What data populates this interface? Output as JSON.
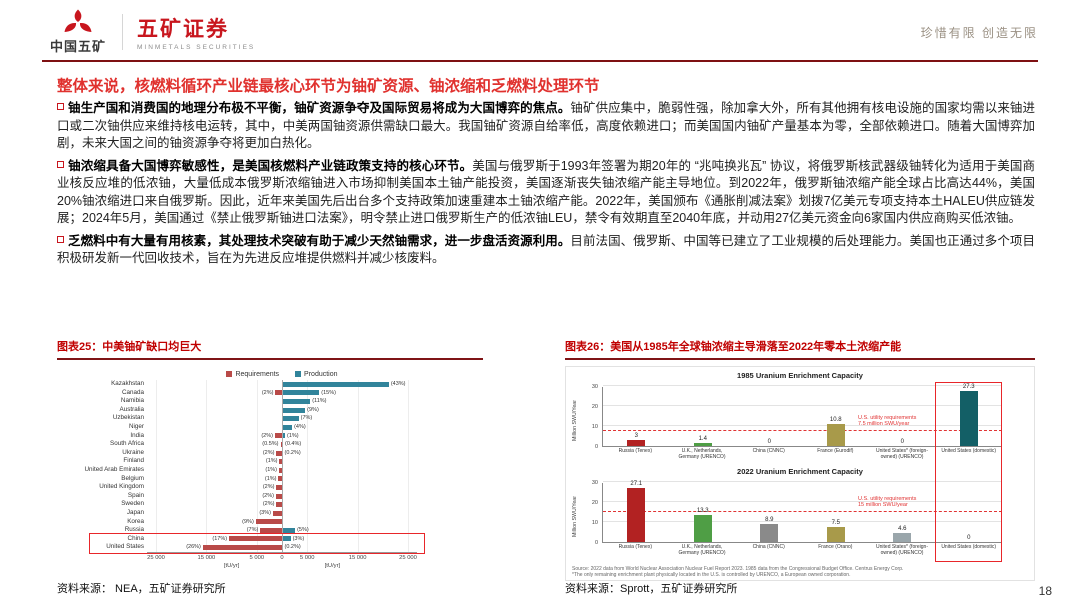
{
  "header": {
    "logo_cn": "中国五矿",
    "brand": "五矿证券",
    "brand_en": "MINMETALS SECURITIES",
    "slogan": "珍惜有限 创造无限"
  },
  "page": {
    "title": "整体来说，核燃料循环产业链最核心环节为铀矿资源、铀浓缩和乏燃料处理环节",
    "number": "18"
  },
  "bullets": [
    {
      "lead": "铀生产国和消费国的地理分布极不平衡，铀矿资源争夺及国际贸易将成为大国博弈的焦点。",
      "body": "铀矿供应集中，脆弱性强，除加拿大外，所有其他拥有核电设施的国家均需以来铀进口或二次铀供应来维持核电运转，其中，中美两国铀资源供需缺口最大。我国铀矿资源自给率低，高度依赖进口；而美国国内铀矿产量基本为零，全部依赖进口。随着大国博弈加剧，未来大国之间的铀资源争夺将更加白热化。"
    },
    {
      "lead": "铀浓缩具备大国博弈敏感性，是美国核燃料产业链政策支持的核心环节。",
      "body": "美国与俄罗斯于1993年签署为期20年的 “兆吨换兆瓦” 协议，将俄罗斯核武器级铀转化为适用于美国商业核反应堆的低浓铀，大量低成本俄罗斯浓缩铀进入市场抑制美国本土铀产能投资，美国逐渐丧失铀浓缩产能主导地位。到2022年，俄罗斯铀浓缩产能全球占比高达44%，美国20%铀浓缩进口来自俄罗斯。因此，近年来美国先后出台多个支持政策加速重建本土铀浓缩产能。2022年，美国颁布《通胀削减法案》划拨7亿美元专项支持本土HALEU供应链发展；2024年5月，美国通过《禁止俄罗斯铀进口法案》，明令禁止进口俄罗斯生产的低浓铀LEU，禁令有效期直至2040年底，并动用27亿美元资金向6家国内供应商购买低浓铀。"
    },
    {
      "lead": "乏燃料中有大量有用核素，其处理技术突破有助于减少天然铀需求，进一步盘活资源利用。",
      "body": "目前法国、俄罗斯、中国等已建立了工业规模的后处理能力。美国也正通过多个项目积极研发新一代回收技术，旨在为先进反应堆提供燃料并减少核废料。"
    }
  ],
  "figure25": {
    "title": "图表25：中美铀矿缺口均巨大",
    "source": "资料来源： NEA，五矿证券研究所"
  },
  "figure26": {
    "title": "图表26：美国从1985年全球铀浓缩主导滑落至2022年零本土浓缩产能",
    "source": "资料来源：Sprott，五矿证券研究所",
    "footnote_line1": "Source: 2022 data from World Nuclear Association Nuclear Fuel Report 2023. 1985 data from the Congressional Budget Office. Centrus Energy Corp.",
    "footnote_line2": "*The only remaining enrichment plant physically located in the U.S. is controlled by URENCO, a European owned corporation."
  },
  "chart_data": [
    {
      "type": "bar",
      "orientation": "horizontal-diverging",
      "title": "中美铀矿缺口均巨大",
      "legend": [
        "Requirements",
        "Production"
      ],
      "colors": {
        "requirements": "#b94a48",
        "production": "#31849b"
      },
      "unit_label": "[tU/yr]",
      "axis_ticks": [
        "25 000",
        "15 000",
        "5 000",
        "0",
        "5 000",
        "15 000",
        "25 000"
      ],
      "xlim": [
        -25000,
        25000
      ],
      "highlight_rows": [
        "China",
        "United States"
      ],
      "rows": [
        {
          "country": "Kazakhstan",
          "requirements": 0,
          "production": 21200,
          "req_label": "",
          "prod_label": "(43%)"
        },
        {
          "country": "Canada",
          "requirements": 1300,
          "production": 7400,
          "req_label": "(2%)",
          "prod_label": "(15%)"
        },
        {
          "country": "Namibia",
          "requirements": 0,
          "production": 5600,
          "req_label": "",
          "prod_label": "(11%)"
        },
        {
          "country": "Australia",
          "requirements": 0,
          "production": 4600,
          "req_label": "",
          "prod_label": "(9%)"
        },
        {
          "country": "Uzbekistan",
          "requirements": 0,
          "production": 3300,
          "req_label": "",
          "prod_label": "(7%)"
        },
        {
          "country": "Niger",
          "requirements": 0,
          "production": 2000,
          "req_label": "",
          "prod_label": "(4%)"
        },
        {
          "country": "India",
          "requirements": 1400,
          "production": 600,
          "req_label": "(2%)",
          "prod_label": "(1%)"
        },
        {
          "country": "South Africa",
          "requirements": 300,
          "production": 200,
          "req_label": "(0.5%)",
          "prod_label": "(0.4%)"
        },
        {
          "country": "Ukraine",
          "requirements": 1100,
          "production": 100,
          "req_label": "(2%)",
          "prod_label": "(0.2%)"
        },
        {
          "country": "Finland",
          "requirements": 500,
          "production": 0,
          "req_label": "(1%)",
          "prod_label": ""
        },
        {
          "country": "United Arab Emirates",
          "requirements": 600,
          "production": 0,
          "req_label": "(1%)",
          "prod_label": ""
        },
        {
          "country": "Belgium",
          "requirements": 700,
          "production": 0,
          "req_label": "(1%)",
          "prod_label": ""
        },
        {
          "country": "United Kingdom",
          "requirements": 1100,
          "production": 0,
          "req_label": "(2%)",
          "prod_label": ""
        },
        {
          "country": "Spain",
          "requirements": 1200,
          "production": 0,
          "req_label": "(2%)",
          "prod_label": ""
        },
        {
          "country": "Sweden",
          "requirements": 1100,
          "production": 0,
          "req_label": "(2%)",
          "prod_label": ""
        },
        {
          "country": "Japan",
          "requirements": 1800,
          "production": 0,
          "req_label": "(3%)",
          "prod_label": ""
        },
        {
          "country": "Korea",
          "requirements": 5200,
          "production": 0,
          "req_label": "(9%)",
          "prod_label": ""
        },
        {
          "country": "Russia",
          "requirements": 4300,
          "production": 2600,
          "req_label": "(7%)",
          "prod_label": "(5%)"
        },
        {
          "country": "China",
          "requirements": 10500,
          "production": 1700,
          "req_label": "(17%)",
          "prod_label": "(3%)"
        },
        {
          "country": "United States",
          "requirements": 15700,
          "production": 100,
          "req_label": "(26%)",
          "prod_label": "(0.2%)"
        }
      ]
    },
    {
      "type": "bar",
      "title": "1985 Uranium Enrichment Capacity",
      "ylabel": "Million SWU/Year",
      "ylim": [
        0,
        30
      ],
      "yticks": [
        0,
        10,
        20,
        30
      ],
      "categories": [
        "Russia (Tenex)",
        "U.K., Netherlands, Germany (URENCO)",
        "China (CNNC)",
        "France (Eurodif)",
        "United States* (foreign-owned) (URENCO)",
        "United States (domestic)"
      ],
      "values": [
        3,
        1.4,
        0,
        10.8,
        0,
        27.3
      ],
      "bar_colors": [
        "#b22222",
        "#4f9e45",
        "#8a8a8a",
        "#a89a4a",
        "#9a9a9a",
        "#135f66"
      ],
      "requirement_level": 7.5,
      "annotation": [
        "U.S. utility requirements",
        "7.5 million SWU/year"
      ]
    },
    {
      "type": "bar",
      "title": "2022 Uranium Enrichment Capacity",
      "ylabel": "Million SWU/Year",
      "ylim": [
        0,
        30
      ],
      "yticks": [
        0,
        10,
        20,
        30
      ],
      "categories": [
        "Russia (Tenex)",
        "U.K., Netherlands, Germany (URENCO)",
        "China (CNNC)",
        "France (Orano)",
        "United States* (foreign-owned) (URENCO)",
        "United States (domestic)"
      ],
      "values": [
        27.1,
        13.3,
        8.9,
        7.5,
        4.6,
        0
      ],
      "bar_colors": [
        "#b22222",
        "#4f9e45",
        "#8a8a8a",
        "#a89a4a",
        "#9aa6ab",
        "#135f66"
      ],
      "requirement_level": 15,
      "annotation": [
        "U.S. utility requirements",
        "15 million SWU/year"
      ]
    }
  ]
}
